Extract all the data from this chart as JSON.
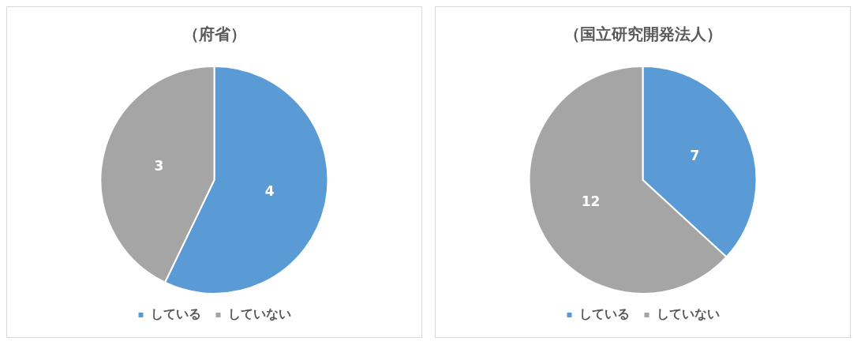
{
  "chart_data": [
    {
      "type": "pie",
      "title": "（府省）",
      "categories": [
        "している",
        "していない"
      ],
      "values": [
        4,
        3
      ],
      "colors": [
        "#5b9bd5",
        "#a5a5a5"
      ],
      "data_labels": true,
      "legend": "bottom"
    },
    {
      "type": "pie",
      "title": "（国立研究開発法人）",
      "categories": [
        "している",
        "していない"
      ],
      "values": [
        7,
        12
      ],
      "colors": [
        "#5b9bd5",
        "#a5a5a5"
      ],
      "data_labels": true,
      "legend": "bottom"
    }
  ]
}
